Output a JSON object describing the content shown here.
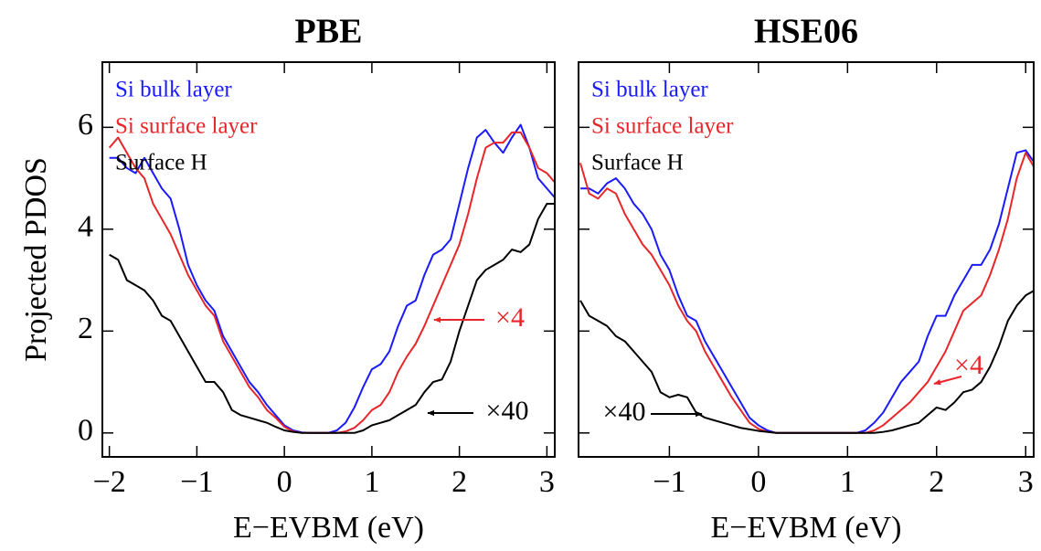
{
  "chart_data": [
    {
      "type": "line",
      "title": "PBE",
      "ylabel": "Projected PDOS",
      "xlabel": "E−EVBM (eV)",
      "xlim": [
        -2.08,
        3.09
      ],
      "ylim": [
        -0.47,
        7.28
      ],
      "xticks": [
        {
          "value": -2,
          "label": "−2"
        },
        {
          "value": -1,
          "label": "−1"
        },
        0,
        1,
        2,
        3
      ],
      "yticks": [
        0,
        2,
        4,
        6
      ],
      "show_ytick_labels": true,
      "x": [
        -2.0,
        -1.9,
        -1.8,
        -1.7,
        -1.6,
        -1.5,
        -1.4,
        -1.3,
        -1.2,
        -1.1,
        -1.0,
        -0.9,
        -0.8,
        -0.7,
        -0.6,
        -0.5,
        -0.4,
        -0.3,
        -0.2,
        -0.1,
        0,
        0.1,
        0.2,
        0.3,
        0.4,
        0.5,
        0.6,
        0.7,
        0.8,
        0.9,
        1.0,
        1.1,
        1.2,
        1.3,
        1.4,
        1.5,
        1.6,
        1.7,
        1.8,
        1.9,
        2.0,
        2.1,
        2.2,
        2.3,
        2.4,
        2.5,
        2.6,
        2.7,
        2.8,
        2.9,
        3.0,
        3.1
      ],
      "series": [
        {
          "name": "Si bulk layer",
          "color": "#1a1aff",
          "values": [
            5.4,
            5.4,
            5.2,
            5.1,
            5.4,
            5.1,
            4.8,
            4.6,
            4.0,
            3.3,
            2.9,
            2.6,
            2.4,
            1.9,
            1.6,
            1.3,
            1.0,
            0.8,
            0.55,
            0.35,
            0.15,
            0.05,
            0.01,
            0,
            0,
            0,
            0.05,
            0.2,
            0.5,
            0.9,
            1.25,
            1.35,
            1.6,
            2.1,
            2.5,
            2.6,
            3.1,
            3.5,
            3.6,
            3.8,
            4.5,
            5.2,
            5.8,
            5.95,
            5.7,
            5.5,
            5.8,
            6.05,
            5.6,
            5.0,
            4.8,
            4.6
          ]
        },
        {
          "name": "Si surface layer",
          "color": "#e8262a",
          "values": [
            5.6,
            5.8,
            5.5,
            5.2,
            5.0,
            4.5,
            4.2,
            3.9,
            3.5,
            3.1,
            2.8,
            2.5,
            2.3,
            1.8,
            1.5,
            1.2,
            0.9,
            0.7,
            0.45,
            0.3,
            0.12,
            0.03,
            0,
            0,
            0,
            0,
            0,
            0.03,
            0.1,
            0.25,
            0.45,
            0.55,
            0.8,
            1.2,
            1.5,
            1.75,
            2.1,
            2.5,
            2.9,
            3.3,
            3.7,
            4.3,
            5.0,
            5.6,
            5.7,
            5.7,
            5.9,
            5.9,
            5.6,
            5.2,
            5.1,
            4.9
          ]
        },
        {
          "name": "Surface H",
          "color": "#000000",
          "values": [
            3.5,
            3.4,
            3.0,
            2.9,
            2.8,
            2.6,
            2.3,
            2.2,
            1.9,
            1.6,
            1.3,
            1.0,
            1.0,
            0.8,
            0.45,
            0.35,
            0.3,
            0.25,
            0.2,
            0.12,
            0.05,
            0.02,
            0,
            0,
            0,
            0,
            0,
            0,
            0,
            0.05,
            0.15,
            0.2,
            0.25,
            0.35,
            0.45,
            0.55,
            0.8,
            1.0,
            1.05,
            1.4,
            2.0,
            2.5,
            3.0,
            3.2,
            3.3,
            3.4,
            3.6,
            3.55,
            3.7,
            4.2,
            4.5,
            4.5
          ]
        }
      ],
      "annotations": [
        {
          "text": "×4",
          "color": "#e8262a"
        },
        {
          "text": "×40",
          "color": "#000000"
        }
      ]
    },
    {
      "type": "line",
      "title": "HSE06",
      "xlabel": "E−EVBM (eV)",
      "xlim": [
        -2.02,
        3.09
      ],
      "ylim": [
        -0.47,
        7.28
      ],
      "xticks": [
        {
          "value": -1,
          "label": "−1"
        },
        0,
        1,
        2,
        3
      ],
      "yticks": [
        0,
        2,
        4,
        6
      ],
      "show_ytick_labels": false,
      "x": [
        -2.0,
        -1.9,
        -1.8,
        -1.7,
        -1.6,
        -1.5,
        -1.4,
        -1.3,
        -1.2,
        -1.1,
        -1.0,
        -0.9,
        -0.8,
        -0.7,
        -0.6,
        -0.5,
        -0.4,
        -0.3,
        -0.2,
        -0.1,
        0,
        0.1,
        0.2,
        0.3,
        0.4,
        0.5,
        0.6,
        0.7,
        0.8,
        0.9,
        1.0,
        1.1,
        1.2,
        1.3,
        1.4,
        1.5,
        1.6,
        1.7,
        1.8,
        1.9,
        2.0,
        2.1,
        2.2,
        2.3,
        2.4,
        2.5,
        2.6,
        2.7,
        2.8,
        2.9,
        3.0,
        3.1
      ],
      "series": [
        {
          "name": "Si bulk layer",
          "color": "#1a1aff",
          "values": [
            4.8,
            4.8,
            4.7,
            4.9,
            5.0,
            4.8,
            4.5,
            4.3,
            4.0,
            3.5,
            3.2,
            2.7,
            2.3,
            2.2,
            1.8,
            1.5,
            1.2,
            0.9,
            0.6,
            0.3,
            0.15,
            0.05,
            0,
            0,
            0,
            0,
            0,
            0,
            0,
            0,
            0,
            0,
            0.05,
            0.2,
            0.4,
            0.7,
            1.0,
            1.2,
            1.4,
            1.9,
            2.3,
            2.3,
            2.7,
            3.0,
            3.3,
            3.3,
            3.6,
            4.1,
            4.8,
            5.5,
            5.55,
            5.3
          ]
        },
        {
          "name": "Si surface layer",
          "color": "#e8262a",
          "values": [
            5.3,
            4.7,
            4.6,
            4.8,
            4.7,
            4.3,
            4.0,
            3.7,
            3.5,
            3.2,
            2.9,
            2.5,
            2.2,
            2.0,
            1.6,
            1.3,
            1.0,
            0.7,
            0.45,
            0.2,
            0.08,
            0.02,
            0,
            0,
            0,
            0,
            0,
            0,
            0,
            0,
            0,
            0,
            0,
            0.05,
            0.15,
            0.3,
            0.45,
            0.6,
            0.8,
            1.0,
            1.3,
            1.6,
            2.0,
            2.4,
            2.55,
            2.7,
            3.1,
            3.6,
            4.2,
            5.0,
            5.5,
            5.2
          ]
        },
        {
          "name": "Surface H",
          "color": "#000000",
          "values": [
            2.6,
            2.3,
            2.2,
            2.1,
            1.9,
            1.8,
            1.6,
            1.4,
            1.2,
            0.8,
            0.7,
            0.75,
            0.7,
            0.4,
            0.3,
            0.25,
            0.2,
            0.15,
            0.1,
            0.07,
            0.04,
            0.02,
            0,
            0,
            0,
            0,
            0,
            0,
            0,
            0,
            0,
            0,
            0,
            0,
            0.02,
            0.05,
            0.1,
            0.15,
            0.2,
            0.35,
            0.5,
            0.45,
            0.6,
            0.8,
            0.85,
            1.0,
            1.3,
            1.7,
            2.2,
            2.5,
            2.7,
            2.8
          ]
        }
      ],
      "annotations": [
        {
          "text": "×4",
          "color": "#e8262a"
        },
        {
          "text": "×40",
          "color": "#000000"
        }
      ]
    }
  ]
}
